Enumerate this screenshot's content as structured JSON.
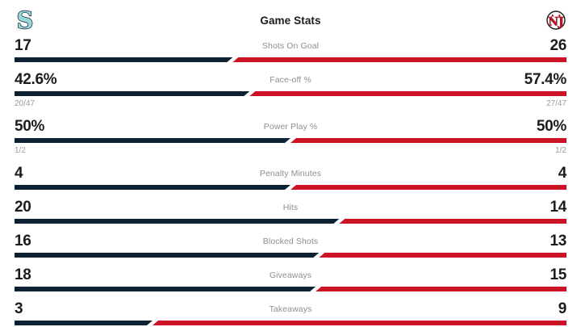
{
  "header": {
    "title": "Game Stats",
    "home_team_logo": "seattle-kraken-logo",
    "away_team_logo": "new-jersey-devils-logo"
  },
  "colors": {
    "home_bar": "#0e2132",
    "away_bar": "#cd1225",
    "kraken_logo_fill": "#9ad7d9",
    "kraken_logo_outline": "#0a1c2b",
    "devils_logo_red": "#cd1225",
    "devils_logo_outline": "#1c1c1e",
    "value_text": "#1c1c1e",
    "label_text": "#8e8e93",
    "sub_text": "#9b9ba1"
  },
  "chart_data": {
    "type": "bar",
    "title": "Game Stats",
    "layout": "paired-horizontal-comparison-bars",
    "legend_position": "top (team logos left and right)",
    "teams": [
      {
        "name": "Seattle Kraken",
        "side": "left",
        "color": "#0e2132"
      },
      {
        "name": "New Jersey Devils",
        "side": "right",
        "color": "#cd1225"
      }
    ],
    "categories": [
      "Shots On Goal",
      "Face-off %",
      "Power Play %",
      "Penalty Minutes",
      "Hits",
      "Blocked Shots",
      "Giveaways",
      "Takeaways"
    ],
    "series": [
      {
        "name": "Seattle Kraken",
        "values": [
          17,
          42.6,
          50,
          4,
          20,
          16,
          18,
          3
        ]
      },
      {
        "name": "New Jersey Devils",
        "values": [
          26,
          57.4,
          50,
          4,
          14,
          13,
          15,
          9
        ]
      }
    ],
    "rows": [
      {
        "label": "Shots On Goal",
        "home": "17",
        "away": "26"
      },
      {
        "label": "Face-off %",
        "home": "42.6%",
        "away": "57.4%",
        "home_sub": "20/47",
        "away_sub": "27/47"
      },
      {
        "label": "Power Play %",
        "home": "50%",
        "away": "50%",
        "home_sub": "1/2",
        "away_sub": "1/2"
      },
      {
        "label": "Penalty Minutes",
        "home": "4",
        "away": "4"
      },
      {
        "label": "Hits",
        "home": "20",
        "away": "14"
      },
      {
        "label": "Blocked Shots",
        "home": "16",
        "away": "13"
      },
      {
        "label": "Giveaways",
        "home": "18",
        "away": "15"
      },
      {
        "label": "Takeaways",
        "home": "3",
        "away": "9"
      }
    ]
  }
}
